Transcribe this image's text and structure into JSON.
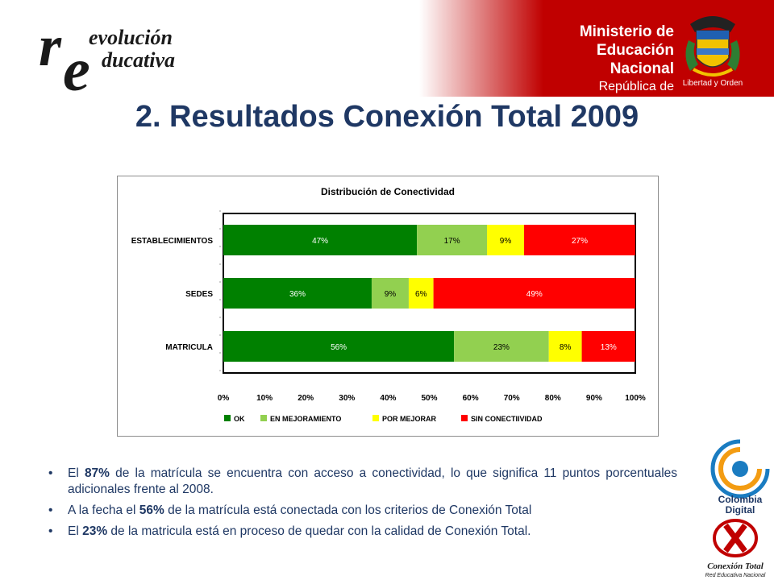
{
  "header": {
    "logo_left_big1": "r",
    "logo_left_big2": "e",
    "logo_left_line1": "evolución",
    "logo_left_line2": "ducativa",
    "ministry_line1": "Ministerio de",
    "ministry_line2": "Educación Nacional",
    "ministry_line3": "República de Colombia",
    "motto": "Libertad y Orden",
    "colors": {
      "red": "#c00000",
      "navy": "#1f3864"
    }
  },
  "page_title": "2. Resultados Conexión Total 2009",
  "chart_data": {
    "type": "bar",
    "orientation": "horizontal",
    "stacked": true,
    "title": "Distribución de Conectividad",
    "categories": [
      "ESTABLECIMIENTOS",
      "SEDES",
      "MATRICULA"
    ],
    "series": [
      {
        "name": "OK",
        "values": [
          47,
          36,
          56
        ],
        "labels": [
          "47%",
          "36%",
          "56%"
        ],
        "color": "#008000"
      },
      {
        "name": "EN MEJORAMIENTO",
        "values": [
          17,
          9,
          23
        ],
        "labels": [
          "17%",
          "9%",
          "23%"
        ],
        "color": "#92d050"
      },
      {
        "name": "POR MEJORAR",
        "values": [
          9,
          6,
          8
        ],
        "labels": [
          "9%",
          "6%",
          "8%"
        ],
        "color": "#ffff00"
      },
      {
        "name": "SIN CONECTIIVIDAD",
        "values": [
          27,
          49,
          13
        ],
        "labels": [
          "27%",
          "49%",
          "13%"
        ],
        "color": "#ff0000"
      }
    ],
    "xlim": [
      0,
      100
    ],
    "xticks": [
      "0%",
      "10%",
      "20%",
      "30%",
      "40%",
      "50%",
      "60%",
      "70%",
      "80%",
      "90%",
      "100%"
    ],
    "legend": "bottom",
    "grid": false
  },
  "bullets": [
    {
      "pre": "El ",
      "bold": "87%",
      "post": " de la matrícula se encuentra con acceso a conectividad, lo que significa 11 puntos porcentuales adicionales frente al 2008."
    },
    {
      "pre": "A la fecha el ",
      "bold": "56%",
      "post": " de la matrícula está conectada con los criterios de Conexión Total"
    },
    {
      "pre": "El ",
      "bold": "23%",
      "post": "  de la matricula está en proceso de quedar con la calidad de Conexión Total."
    }
  ],
  "footer_logos": {
    "colombia_digital_line1": "Colombia",
    "colombia_digital_line2": "Digital",
    "conexion_total_line1": "Conexión Total",
    "conexion_total_line2": "Red Educativa Nacional"
  }
}
